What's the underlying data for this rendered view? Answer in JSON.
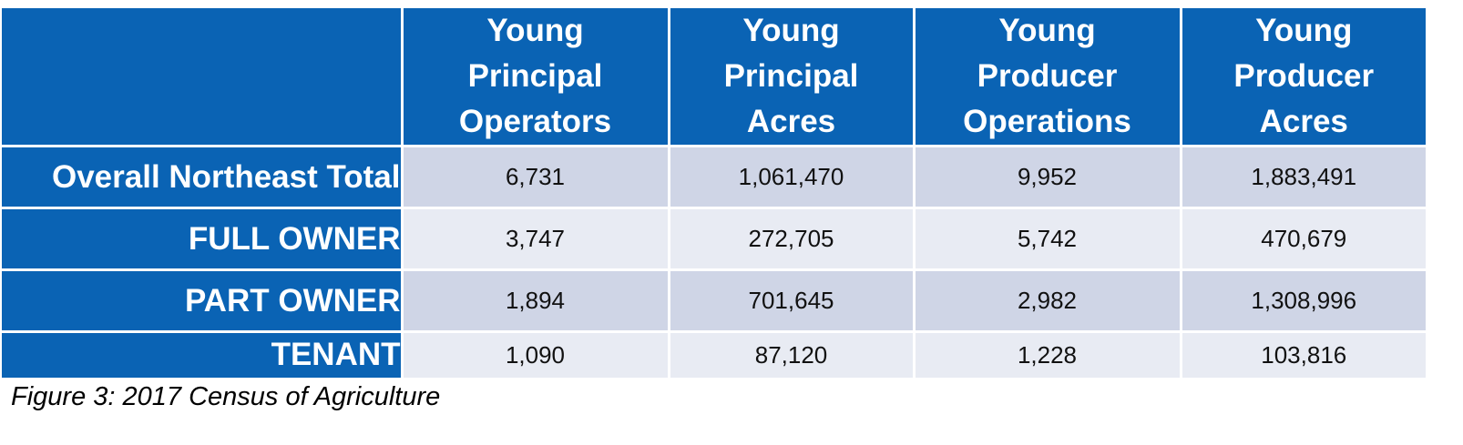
{
  "table": {
    "columns": [
      {
        "lines": [
          "Young",
          "Principal",
          "Operators"
        ]
      },
      {
        "lines": [
          "Young",
          "Principal",
          "Acres"
        ]
      },
      {
        "lines": [
          "Young",
          "Producer",
          "Operations"
        ]
      },
      {
        "lines": [
          "Young",
          "Producer",
          "Acres"
        ]
      }
    ],
    "rows": [
      {
        "label": "Overall Northeast Total",
        "values": [
          "6,731",
          "1,061,470",
          "9,952",
          "1,883,491"
        ]
      },
      {
        "label": "FULL OWNER",
        "values": [
          "3,747",
          "272,705",
          "5,742",
          "470,679"
        ]
      },
      {
        "label": "PART OWNER",
        "values": [
          "1,894",
          "701,645",
          "2,982",
          "1,308,996"
        ]
      },
      {
        "label": "TENANT",
        "values": [
          "1,090",
          "87,120",
          "1,228",
          "103,816"
        ]
      }
    ]
  },
  "caption": "Figure 3: 2017 Census of Agriculture",
  "colors": {
    "header_blue": "#0a63b4",
    "row_dark": "#cfd5e6",
    "row_light": "#e8ebf3"
  }
}
